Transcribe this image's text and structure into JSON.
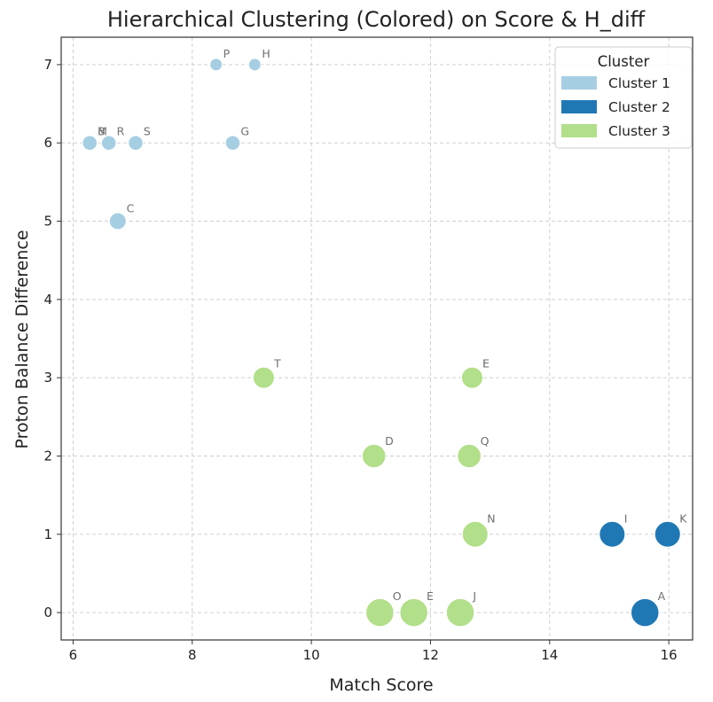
{
  "colors": {
    "Cluster 1": "#a6cee3",
    "Cluster 2": "#1f78b4",
    "Cluster 3": "#b2df8a"
  },
  "chart_data": {
    "type": "scatter",
    "title": "Hierarchical Clustering (Colored) on Score & H_diff",
    "xlabel": "Match Score",
    "ylabel": "Proton Balance Difference",
    "xlim": [
      5.8,
      16.4
    ],
    "ylim": [
      -0.35,
      7.35
    ],
    "xticks": [
      6,
      8,
      10,
      12,
      14,
      16
    ],
    "yticks": [
      0,
      1,
      2,
      3,
      4,
      5,
      6,
      7
    ],
    "grid": true,
    "legend": {
      "title": "Cluster",
      "placement": "top-right",
      "entries": [
        "Cluster 1",
        "Cluster 2",
        "Cluster 3"
      ]
    },
    "points": [
      {
        "label": "P",
        "x": 8.4,
        "y": 7,
        "cluster": "Cluster 1"
      },
      {
        "label": "H",
        "x": 9.05,
        "y": 7,
        "cluster": "Cluster 1"
      },
      {
        "label": "M",
        "x": 6.28,
        "y": 6,
        "cluster": "Cluster 1"
      },
      {
        "label": "B",
        "x": 6.28,
        "y": 6,
        "cluster": "Cluster 1"
      },
      {
        "label": "R",
        "x": 6.6,
        "y": 6,
        "cluster": "Cluster 1"
      },
      {
        "label": "S",
        "x": 7.05,
        "y": 6,
        "cluster": "Cluster 1"
      },
      {
        "label": "G",
        "x": 8.68,
        "y": 6,
        "cluster": "Cluster 1"
      },
      {
        "label": "C",
        "x": 6.75,
        "y": 5,
        "cluster": "Cluster 1"
      },
      {
        "label": "T",
        "x": 9.2,
        "y": 3,
        "cluster": "Cluster 3"
      },
      {
        "label": "E",
        "x": 12.7,
        "y": 3,
        "cluster": "Cluster 3"
      },
      {
        "label": "F",
        "x": 12.7,
        "y": 3,
        "cluster": "Cluster 3"
      },
      {
        "label": "D",
        "x": 11.05,
        "y": 2,
        "cluster": "Cluster 3"
      },
      {
        "label": "Q",
        "x": 12.65,
        "y": 2,
        "cluster": "Cluster 3"
      },
      {
        "label": "N",
        "x": 12.75,
        "y": 1,
        "cluster": "Cluster 3"
      },
      {
        "label": "I",
        "x": 15.05,
        "y": 1,
        "cluster": "Cluster 2"
      },
      {
        "label": "K",
        "x": 15.98,
        "y": 1,
        "cluster": "Cluster 2"
      },
      {
        "label": "O",
        "x": 11.15,
        "y": 0,
        "cluster": "Cluster 3"
      },
      {
        "label": "E",
        "x": 11.72,
        "y": 0,
        "cluster": "Cluster 3"
      },
      {
        "label": "J",
        "x": 12.5,
        "y": 0,
        "cluster": "Cluster 3"
      },
      {
        "label": "A",
        "x": 15.6,
        "y": 0,
        "cluster": "Cluster 2"
      }
    ]
  }
}
